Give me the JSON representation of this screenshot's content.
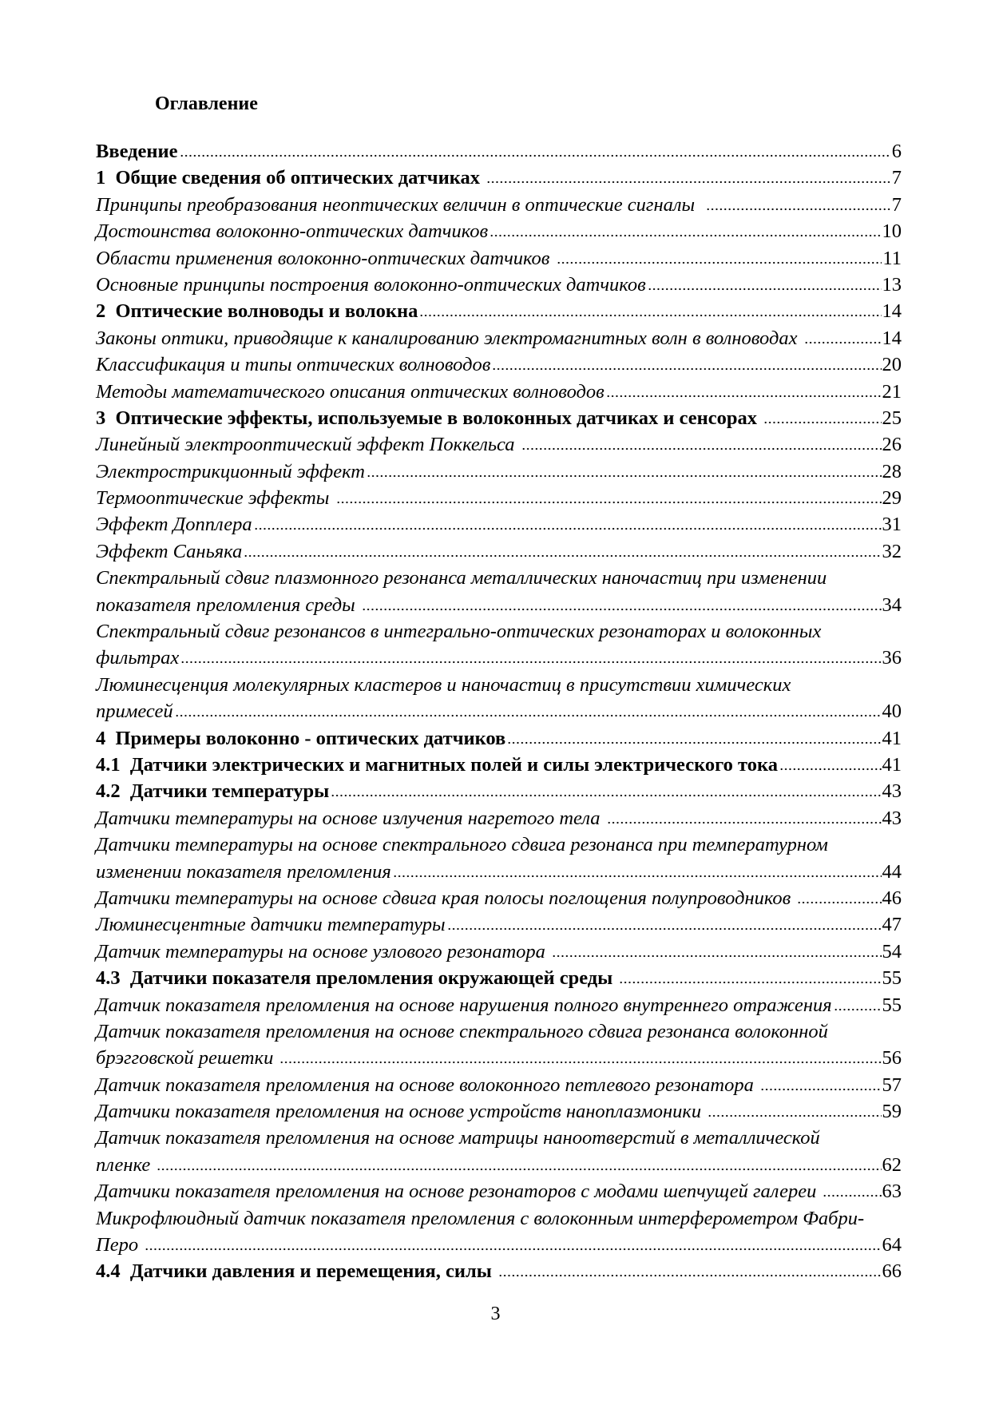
{
  "heading": "Оглавление",
  "entries": [
    {
      "style": "bold",
      "lines": [
        "Введение"
      ],
      "page": "6"
    },
    {
      "style": "bold",
      "lines": [
        "1  Общие сведения об оптических датчиках "
      ],
      "page": "7"
    },
    {
      "style": "ital",
      "lines": [
        "Принципы преобразования неоптических величин в оптические сигналы  "
      ],
      "page": "7"
    },
    {
      "style": "ital",
      "lines": [
        "Достоинства волоконно-оптических датчиков"
      ],
      "page": "10"
    },
    {
      "style": "ital",
      "lines": [
        "Области применения волоконно-оптических датчиков "
      ],
      "page": "11"
    },
    {
      "style": "ital",
      "lines": [
        "Основные принципы построения волоконно-оптических датчиков"
      ],
      "page": "13"
    },
    {
      "style": "bold",
      "lines": [
        "2  Оптические волноводы и волокна"
      ],
      "page": "14"
    },
    {
      "style": "ital",
      "lines": [
        "Законы оптики, приводящие к каналированию электромагнитных волн в волноводах "
      ],
      "page": "14"
    },
    {
      "style": "ital",
      "lines": [
        "Классификация и типы оптических волноводов"
      ],
      "page": "20"
    },
    {
      "style": "ital",
      "lines": [
        "Методы математического описания оптических волноводов"
      ],
      "page": "21"
    },
    {
      "style": "bold",
      "lines": [
        "3  Оптические эффекты, используемые в волоконных датчиках и сенсорах "
      ],
      "page": "25"
    },
    {
      "style": "ital",
      "lines": [
        "Линейный электрооптический эффект Поккельса "
      ],
      "page": "26"
    },
    {
      "style": "ital",
      "lines": [
        "Электрострикционный эффект"
      ],
      "page": "28"
    },
    {
      "style": "ital",
      "lines": [
        "Термооптические эффекты "
      ],
      "page": "29"
    },
    {
      "style": "ital",
      "lines": [
        "Эффект Допплера"
      ],
      "page": "31"
    },
    {
      "style": "ital",
      "lines": [
        "Эффект Саньяка"
      ],
      "page": "32"
    },
    {
      "style": "ital",
      "lines": [
        "Спектральный сдвиг плазмонного резонанса металлических наночастиц при изменении",
        "показателя преломления среды "
      ],
      "page": "34"
    },
    {
      "style": "ital",
      "lines": [
        "Спектральный сдвиг резонансов в интегрально-оптических резонаторах и волоконных",
        "фильтрах"
      ],
      "page": "36"
    },
    {
      "style": "ital",
      "lines": [
        "Люминесценция молекулярных кластеров и наночастиц в присутствии химических",
        "примесей"
      ],
      "page": "40"
    },
    {
      "style": "bold",
      "lines": [
        "4  Примеры волоконно - оптических датчиков"
      ],
      "page": "41"
    },
    {
      "style": "bold",
      "lines": [
        "4.1  Датчики электрических и магнитных полей и силы электрического тока"
      ],
      "page": "41"
    },
    {
      "style": "bold",
      "lines": [
        "4.2  Датчики температуры"
      ],
      "page": "43"
    },
    {
      "style": "ital",
      "lines": [
        "Датчики температуры на основе излучения нагретого тела "
      ],
      "page": "43"
    },
    {
      "style": "ital",
      "lines": [
        "Датчики температуры на основе спектрального сдвига резонанса при температурном",
        "изменении показателя преломления"
      ],
      "page": "44"
    },
    {
      "style": "ital",
      "lines": [
        "Датчики температуры на основе сдвига края полосы поглощения полупроводников "
      ],
      "page": "46"
    },
    {
      "style": "ital",
      "lines": [
        "Люминесцентные датчики температуры"
      ],
      "page": "47"
    },
    {
      "style": "ital",
      "lines": [
        "Датчик температуры на основе узлового резонатора "
      ],
      "page": "54"
    },
    {
      "style": "bold",
      "lines": [
        "4.3  Датчики показателя преломления окружающей среды "
      ],
      "page": "55"
    },
    {
      "style": "ital",
      "lines": [
        "Датчик показателя преломления на основе нарушения полного внутреннего отражения"
      ],
      "page": "55"
    },
    {
      "style": "ital",
      "lines": [
        "Датчик показателя преломления на основе спектрального сдвига резонанса волоконной",
        "брэгговской решетки "
      ],
      "page": "56"
    },
    {
      "style": "ital",
      "lines": [
        "Датчик показателя преломления на основе волоконного петлевого резонатора "
      ],
      "page": "57"
    },
    {
      "style": "ital",
      "lines": [
        "Датчики показателя преломления на основе устройств наноплазмоники "
      ],
      "page": "59"
    },
    {
      "style": "ital",
      "lines": [
        "Датчик показателя преломления на основе матрицы наноотверстий в металлической",
        "пленке "
      ],
      "page": "62"
    },
    {
      "style": "ital",
      "lines": [
        "Датчики показателя преломления на основе резонаторов с модами шепчущей галереи "
      ],
      "page": "63"
    },
    {
      "style": "ital",
      "lines": [
        "Микрофлюидный датчик показателя преломления с волоконным интерферометром Фабри-",
        "Перо "
      ],
      "page": "64"
    },
    {
      "style": "bold",
      "lines": [
        "4.4  Датчики давления и перемещения, силы "
      ],
      "page": "66"
    }
  ],
  "page_number": "3"
}
